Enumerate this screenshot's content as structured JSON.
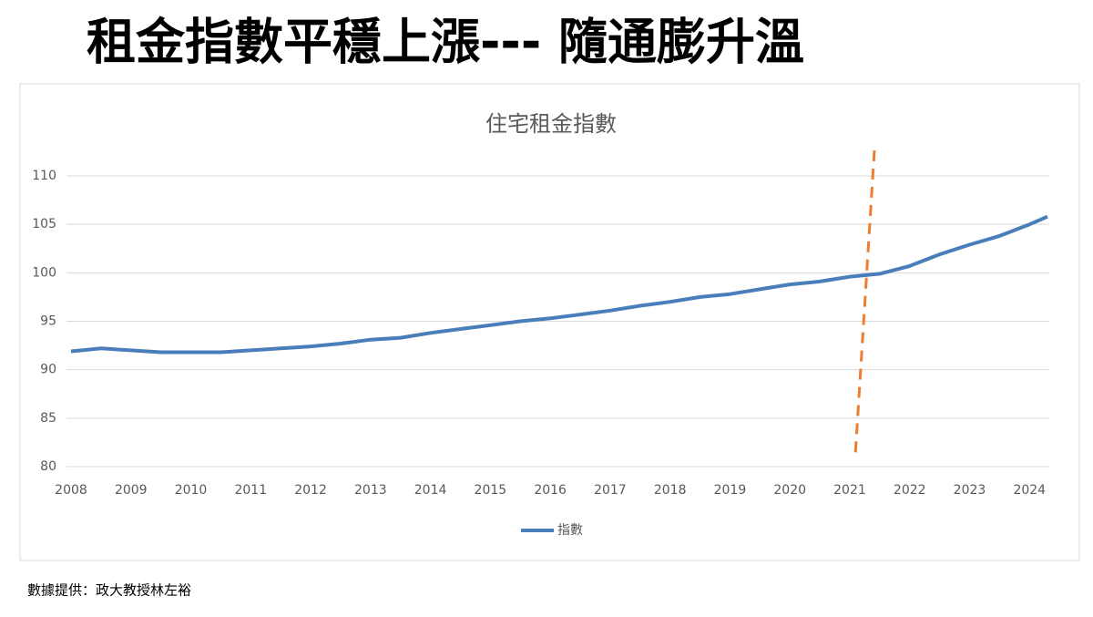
{
  "header": {
    "title": "租金指數平穩上漲--- 隨通膨升溫"
  },
  "chart_data": {
    "type": "line",
    "title": "住宅租金指數",
    "x": [
      2008,
      2008.5,
      2009,
      2009.5,
      2010,
      2010.5,
      2011,
      2011.5,
      2012,
      2012.5,
      2013,
      2013.5,
      2014,
      2014.5,
      2015,
      2015.5,
      2016,
      2016.5,
      2017,
      2017.5,
      2018,
      2018.5,
      2019,
      2019.5,
      2020,
      2020.5,
      2021,
      2021.5,
      2022,
      2022.5,
      2023,
      2023.5,
      2024,
      2024.3
    ],
    "series": [
      {
        "name": "指數",
        "color": "#4a7ebb",
        "values": [
          91.9,
          92.2,
          92.0,
          91.8,
          91.8,
          91.8,
          92.0,
          92.2,
          92.4,
          92.7,
          93.1,
          93.3,
          93.8,
          94.2,
          94.6,
          95.0,
          95.3,
          95.7,
          96.1,
          96.6,
          97.0,
          97.5,
          97.8,
          98.3,
          98.8,
          99.1,
          99.6,
          99.9,
          100.7,
          101.9,
          102.9,
          103.8,
          105.0,
          105.8
        ]
      }
    ],
    "xlim": [
      2008,
      2024.3
    ],
    "xticks": [
      2008,
      2009,
      2010,
      2011,
      2012,
      2013,
      2014,
      2015,
      2016,
      2017,
      2018,
      2019,
      2020,
      2021,
      2022,
      2023,
      2024
    ],
    "ylim": [
      80,
      110
    ],
    "yticks": [
      80,
      85,
      90,
      95,
      100,
      105,
      110
    ],
    "grid": true,
    "legend": "bottom"
  },
  "footer": {
    "source": "數據提供：政大教授林左裕"
  }
}
